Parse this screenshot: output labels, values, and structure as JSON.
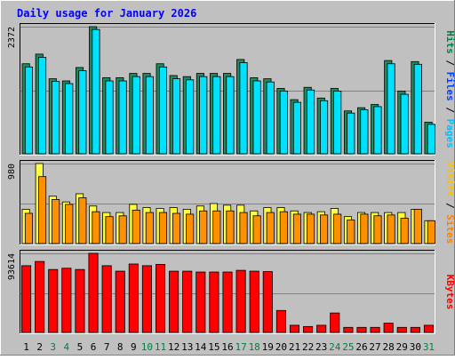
{
  "chart_data": {
    "type": "bar",
    "title": "Daily usage for January 2026",
    "days": [
      "1",
      "2",
      "3",
      "4",
      "5",
      "6",
      "7",
      "8",
      "9",
      "10",
      "11",
      "12",
      "13",
      "14",
      "15",
      "16",
      "17",
      "18",
      "19",
      "20",
      "21",
      "22",
      "23",
      "24",
      "25",
      "26",
      "27",
      "28",
      "29",
      "30",
      "31"
    ],
    "weekend_days": [
      "3",
      "4",
      "10",
      "11",
      "17",
      "18",
      "24",
      "25",
      "31"
    ],
    "panels": [
      {
        "id": "hits-files-pages",
        "scale_label": "2372",
        "scale_value": 2372,
        "ylim": [
          0,
          2372
        ],
        "legend": [
          {
            "key": "pages",
            "text": "Pages",
            "color": "#00c0ff"
          },
          {
            "key": "sep1",
            "text": " / ",
            "color": "#000000"
          },
          {
            "key": "files",
            "text": "Files",
            "color": "#0040ff"
          },
          {
            "key": "sep2",
            "text": " / ",
            "color": "#000000"
          },
          {
            "key": "hits",
            "text": "Hits",
            "color": "#008040"
          }
        ],
        "series": [
          {
            "name": "Hits",
            "color": "#1e8b5e",
            "values": [
              1680,
              1860,
              1400,
              1360,
              1610,
              2372,
              1420,
              1420,
              1500,
              1500,
              1680,
              1460,
              1440,
              1500,
              1500,
              1500,
              1760,
              1420,
              1400,
              1220,
              1010,
              1240,
              1040,
              1220,
              800,
              860,
              920,
              1740,
              1170,
              1720,
              590
            ]
          },
          {
            "name": "Files",
            "color": "#00e0ff",
            "values": [
              1620,
              1800,
              1350,
              1310,
              1550,
              2320,
              1360,
              1360,
              1440,
              1440,
              1620,
              1400,
              1380,
              1440,
              1440,
              1440,
              1700,
              1360,
              1340,
              1170,
              960,
              1190,
              990,
              1170,
              760,
              820,
              880,
              1680,
              1110,
              1670,
              550
            ]
          }
        ]
      },
      {
        "id": "visits-sites",
        "scale_label": "980",
        "scale_value": 980,
        "ylim": [
          0,
          980
        ],
        "legend": [
          {
            "key": "sites",
            "text": "Sites",
            "color": "#ff8000"
          },
          {
            "key": "sep1",
            "text": " / ",
            "color": "#000000"
          },
          {
            "key": "visits",
            "text": "Visits",
            "color": "#ffc000"
          }
        ],
        "series": [
          {
            "name": "Visits",
            "color": "#ffff40",
            "values": [
              420,
              980,
              580,
              510,
              610,
              460,
              380,
              380,
              480,
              440,
              430,
              440,
              420,
              460,
              490,
              470,
              470,
              400,
              440,
              440,
              400,
              380,
              390,
              430,
              330,
              380,
              380,
              380,
              380,
              420,
              280
            ]
          },
          {
            "name": "Sites",
            "color": "#ff9000",
            "values": [
              370,
              820,
              540,
              480,
              560,
              390,
              330,
              340,
              410,
              380,
              380,
              370,
              360,
              400,
              400,
              400,
              380,
              340,
              380,
              390,
              360,
              360,
              350,
              360,
              290,
              360,
              340,
              350,
              310,
              420,
              280
            ]
          }
        ]
      },
      {
        "id": "kbytes",
        "scale_label": "93614",
        "scale_value": 93614,
        "ylim": [
          0,
          93614
        ],
        "legend": [
          {
            "key": "kbytes",
            "text": "KBytes",
            "color": "#ff0000"
          }
        ],
        "series": [
          {
            "name": "KBytes",
            "color": "#ff0000",
            "values": [
              79000,
              84000,
              74500,
              76000,
              74500,
              93614,
              79000,
              72500,
              81000,
              79000,
              80500,
              72500,
              72500,
              71500,
              71500,
              71500,
              73500,
              72500,
              72000,
              26000,
              8500,
              7000,
              8500,
              23000,
              6000,
              6000,
              6000,
              11000,
              6000,
              6000,
              8500
            ]
          }
        ]
      }
    ]
  }
}
